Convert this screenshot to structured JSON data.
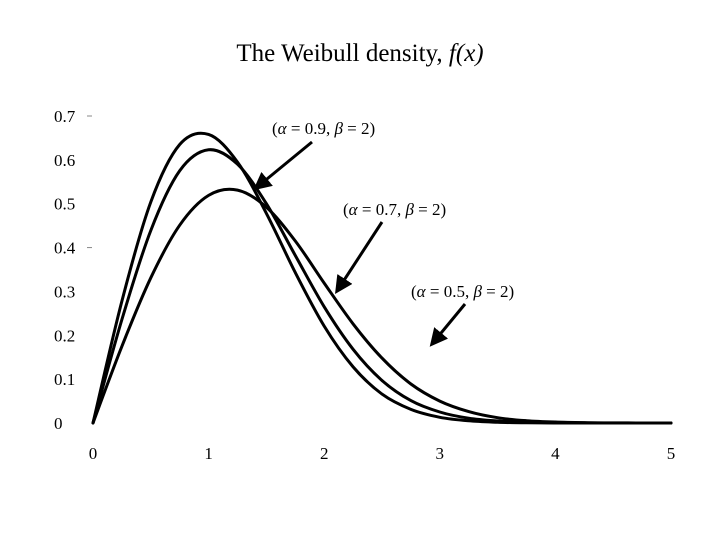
{
  "chart_data": {
    "type": "line",
    "title": "The Weibull density, f(x)",
    "title_prefix": "The Weibull density, ",
    "title_fx": "f(x)",
    "xlabel": "",
    "ylabel": "",
    "xlim": [
      0,
      5
    ],
    "ylim": [
      0,
      0.7
    ],
    "x_ticks": [
      "0",
      "1",
      "2",
      "3",
      "4",
      "5"
    ],
    "y_ticks": [
      "0",
      "0.1",
      "0.2",
      "0.3",
      "0.4",
      "0.5",
      "0.6",
      "0.7"
    ],
    "grid": false,
    "legend": "none",
    "line_color": "#000000",
    "series": [
      {
        "alpha": 0.9,
        "beta": 2,
        "x": [
          0,
          0.25,
          0.5,
          0.75,
          1.0,
          1.25,
          1.5,
          1.75,
          2.0,
          2.25,
          2.5,
          2.75,
          3.0,
          3.25,
          3.5,
          3.75,
          4.0,
          4.25,
          4.5,
          4.75,
          5.0
        ],
        "values": [
          0.0,
          0.278,
          0.504,
          0.635,
          0.658,
          0.595,
          0.478,
          0.343,
          0.221,
          0.128,
          0.066,
          0.031,
          0.013,
          0.005,
          0.0017,
          0.0005,
          0.0001,
          0.0,
          0.0,
          0.0,
          0.0
        ]
      },
      {
        "alpha": 0.7,
        "beta": 2,
        "x": [
          0,
          0.25,
          0.5,
          0.75,
          1.0,
          1.25,
          1.5,
          1.75,
          2.0,
          2.25,
          2.5,
          2.75,
          3.0,
          3.25,
          3.5,
          3.75,
          4.0,
          4.25,
          4.5,
          4.75,
          5.0
        ],
        "values": [
          0.0,
          0.236,
          0.439,
          0.575,
          0.623,
          0.59,
          0.5,
          0.382,
          0.265,
          0.168,
          0.097,
          0.051,
          0.025,
          0.011,
          0.0045,
          0.0017,
          0.0006,
          0.0002,
          0.0,
          0.0,
          0.0
        ]
      },
      {
        "alpha": 0.5,
        "beta": 2,
        "x": [
          0,
          0.25,
          0.5,
          0.75,
          1.0,
          1.25,
          1.5,
          1.75,
          2.0,
          2.25,
          2.5,
          2.75,
          3.0,
          3.25,
          3.5,
          3.75,
          4.0,
          4.25,
          4.5,
          4.75,
          5.0
        ],
        "values": [
          0.0,
          0.175,
          0.331,
          0.451,
          0.519,
          0.531,
          0.492,
          0.415,
          0.319,
          0.226,
          0.148,
          0.089,
          0.05,
          0.026,
          0.012,
          0.0053,
          0.0022,
          0.0008,
          0.0003,
          0.0001,
          0.0
        ]
      }
    ],
    "annotations": [
      {
        "text": "(α = 0.9, β = 2)",
        "alpha_sym": "α",
        "alpha": "0.9",
        "beta_sym": "β",
        "beta": "2"
      },
      {
        "text": "(α = 0.7, β = 2)",
        "alpha_sym": "α",
        "alpha": "0.7",
        "beta_sym": "β",
        "beta": "2"
      },
      {
        "text": "(α = 0.5, β = 2)",
        "alpha_sym": "α",
        "alpha": "0.5",
        "beta_sym": "β",
        "beta": "2"
      }
    ]
  }
}
